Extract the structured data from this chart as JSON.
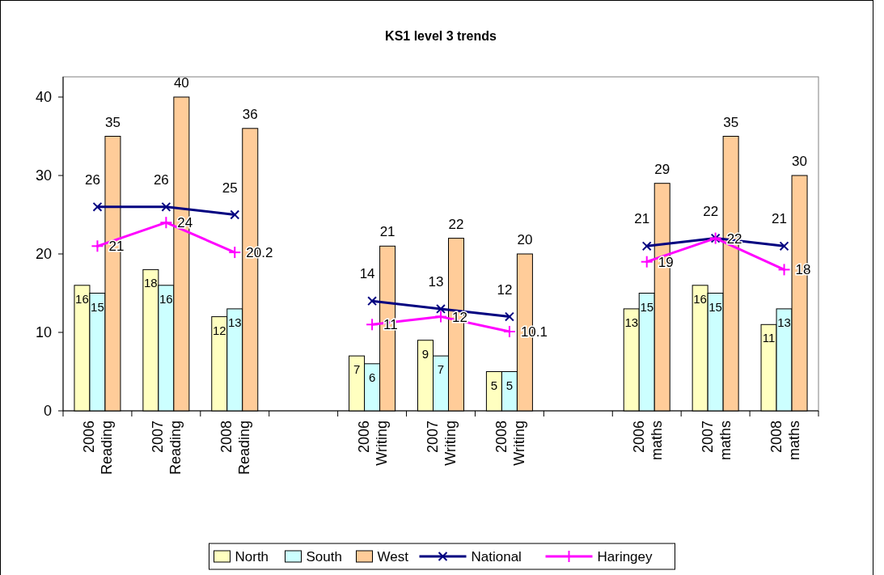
{
  "chart_data": {
    "type": "bar",
    "title": "KS1 level 3 trends",
    "categories": [
      "2006 Reading",
      "2007 Reading",
      "2008 Reading",
      null,
      "2006 Writing",
      "2007 Writing",
      "2008 Writing",
      null,
      "2006 maths",
      "2007 maths",
      "2008 maths"
    ],
    "series": [
      {
        "name": "North",
        "color": "#ffffc0",
        "values": [
          16,
          18,
          12,
          null,
          7,
          9,
          5,
          null,
          13,
          16,
          11
        ]
      },
      {
        "name": "South",
        "color": "#ccffff",
        "values": [
          15,
          16,
          13,
          null,
          6,
          7,
          5,
          null,
          15,
          15,
          13
        ]
      },
      {
        "name": "West",
        "color": "#ffcc99",
        "values": [
          35,
          40,
          36,
          null,
          21,
          22,
          20,
          null,
          29,
          35,
          30
        ]
      },
      {
        "name": "National",
        "type": "line",
        "color": "#000080",
        "marker": "cross",
        "values": [
          26,
          26,
          25,
          null,
          14,
          13,
          12,
          null,
          21,
          22,
          21
        ]
      },
      {
        "name": "Haringey",
        "type": "line",
        "color": "#ff00ff",
        "marker": "cross",
        "values": [
          21,
          24,
          20.2,
          null,
          11,
          12,
          10.1,
          null,
          19,
          22,
          18
        ]
      }
    ],
    "ylim": [
      0,
      40
    ],
    "yticks": [
      0,
      10,
      20,
      30,
      40
    ],
    "grid": false,
    "legend": "bottom",
    "data_labels": true
  }
}
